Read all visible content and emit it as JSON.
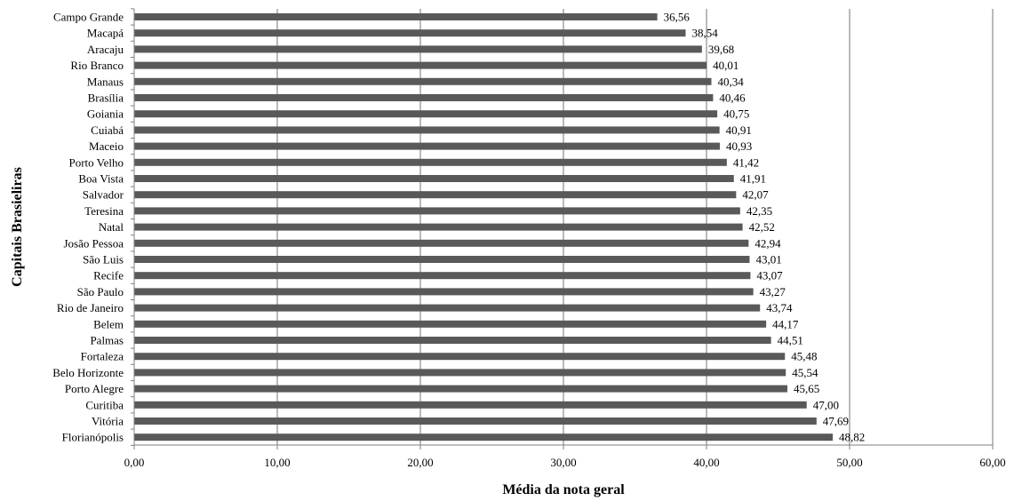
{
  "chart_data": {
    "type": "bar",
    "orientation": "horizontal",
    "xlabel": "Média da nota geral",
    "ylabel": "Capitais Brasieliras",
    "xlim": [
      0,
      60
    ],
    "x_ticks": [
      0,
      10,
      20,
      30,
      40,
      50,
      60
    ],
    "x_tick_labels": [
      "0,00",
      "10,00",
      "20,00",
      "30,00",
      "40,00",
      "50,00",
      "60,00"
    ],
    "grid": "vertical",
    "bar_color": "#595959",
    "categories": [
      "Campo Grande",
      "Macapá",
      "Aracaju",
      "Rio Branco",
      "Manaus",
      "Brasília",
      "Goiania",
      "Cuiabá",
      "Maceio",
      "Porto Velho",
      "Boa Vista",
      "Salvador",
      "Teresina",
      "Natal",
      "Josão Pessoa",
      "São Luis",
      "Recife",
      "São Paulo",
      "Rio de Janeiro",
      "Belem",
      "Palmas",
      "Fortaleza",
      "Belo Horizonte",
      "Porto Alegre",
      "Curitiba",
      "Vitória",
      "Florianópolis"
    ],
    "values": [
      36.56,
      38.54,
      39.68,
      40.01,
      40.34,
      40.46,
      40.75,
      40.91,
      40.93,
      41.42,
      41.91,
      42.07,
      42.35,
      42.52,
      42.94,
      43.01,
      43.07,
      43.27,
      43.74,
      44.17,
      44.51,
      45.48,
      45.54,
      45.65,
      47.0,
      47.69,
      48.82
    ],
    "value_labels": [
      "36,56",
      "38,54",
      "39,68",
      "40,01",
      "40,34",
      "40,46",
      "40,75",
      "40,91",
      "40,93",
      "41,42",
      "41,91",
      "42,07",
      "42,35",
      "42,52",
      "42,94",
      "43,01",
      "43,07",
      "43,27",
      "43,74",
      "44,17",
      "44,51",
      "45,48",
      "45,54",
      "45,65",
      "47,00",
      "47,69",
      "48,82"
    ]
  }
}
